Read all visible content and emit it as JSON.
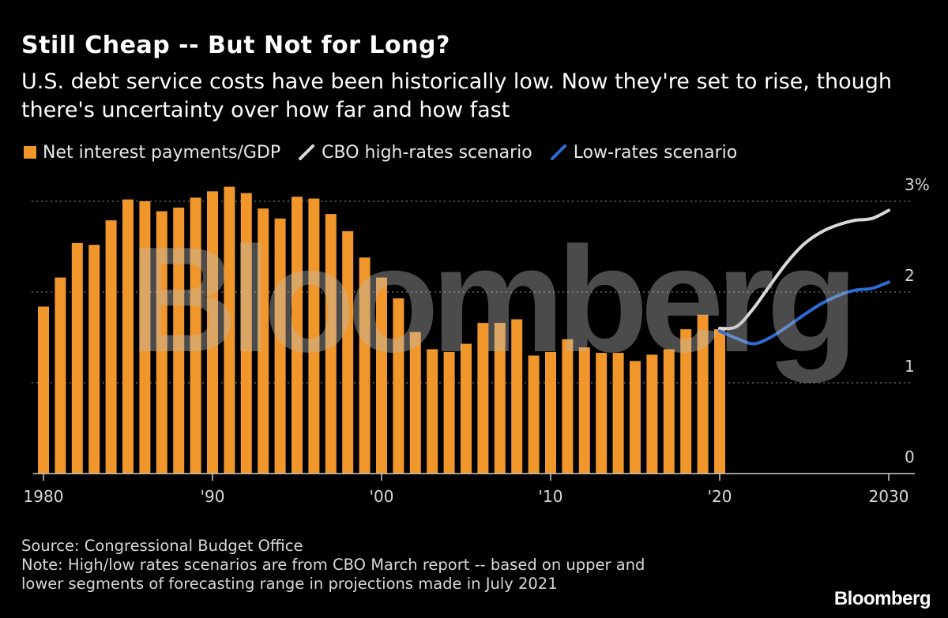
{
  "title": "Still Cheap -- But Not for Long?",
  "subtitle": "U.S. debt service costs have been historically low. Now they're set to rise, though there's uncertainty over how far and how fast",
  "legend": {
    "bars": "Net interest payments/GDP",
    "high": "CBO high-rates scenario",
    "low": "Low-rates scenario"
  },
  "colors": {
    "bar": "#f0962a",
    "high": "#d9d9d9",
    "low": "#2d6bd6",
    "grid": "#777777",
    "watermark": "#bbbbbb"
  },
  "watermark": "Bloomberg",
  "source": "Source: Congressional Budget Office",
  "note_line1": "Note: High/low rates scenarios are from CBO March report -- based on upper and",
  "note_line2": "lower segments of forecasting range in projections made in July 2021",
  "brand": "Bloomberg",
  "chart_data": {
    "type": "bar",
    "title": "Still Cheap -- But Not for Long?",
    "xlim": [
      1980,
      2030
    ],
    "ylim": [
      0,
      3
    ],
    "unit": "% of GDP",
    "y_ticks": [
      {
        "value": 0,
        "label": "0"
      },
      {
        "value": 1,
        "label": "1"
      },
      {
        "value": 2,
        "label": "2"
      },
      {
        "value": 3,
        "label": "3%"
      }
    ],
    "x_ticks": [
      {
        "value": 1980,
        "label": "1980"
      },
      {
        "value": 1990,
        "label": "'90"
      },
      {
        "value": 2000,
        "label": "'00"
      },
      {
        "value": 2010,
        "label": "'10"
      },
      {
        "value": 2020,
        "label": "'20"
      },
      {
        "value": 2030,
        "label": "2030"
      }
    ],
    "series": [
      {
        "name": "Net interest payments/GDP",
        "kind": "bar",
        "x": [
          1980,
          1981,
          1982,
          1983,
          1984,
          1985,
          1986,
          1987,
          1988,
          1989,
          1990,
          1991,
          1992,
          1993,
          1994,
          1995,
          1996,
          1997,
          1998,
          1999,
          2000,
          2001,
          2002,
          2003,
          2004,
          2005,
          2006,
          2007,
          2008,
          2009,
          2010,
          2011,
          2012,
          2013,
          2014,
          2015,
          2016,
          2017,
          2018,
          2019,
          2020
        ],
        "values": [
          1.84,
          2.16,
          2.54,
          2.52,
          2.79,
          3.02,
          3.0,
          2.89,
          2.93,
          3.04,
          3.11,
          3.16,
          3.09,
          2.92,
          2.81,
          3.05,
          3.03,
          2.86,
          2.67,
          2.38,
          2.16,
          1.93,
          1.56,
          1.37,
          1.34,
          1.43,
          1.66,
          1.66,
          1.7,
          1.3,
          1.34,
          1.48,
          1.39,
          1.33,
          1.33,
          1.24,
          1.31,
          1.37,
          1.59,
          1.75,
          1.59
        ]
      },
      {
        "name": "CBO high-rates scenario",
        "kind": "line",
        "x": [
          2020,
          2021,
          2022,
          2023,
          2024,
          2025,
          2026,
          2027,
          2028,
          2029,
          2030
        ],
        "values": [
          1.6,
          1.62,
          1.82,
          2.08,
          2.33,
          2.53,
          2.66,
          2.74,
          2.79,
          2.81,
          2.9
        ]
      },
      {
        "name": "Low-rates scenario",
        "kind": "line",
        "x": [
          2020,
          2021,
          2022,
          2023,
          2024,
          2025,
          2026,
          2027,
          2028,
          2029,
          2030
        ],
        "values": [
          1.57,
          1.49,
          1.43,
          1.5,
          1.62,
          1.75,
          1.87,
          1.96,
          2.02,
          2.04,
          2.11
        ]
      }
    ]
  }
}
